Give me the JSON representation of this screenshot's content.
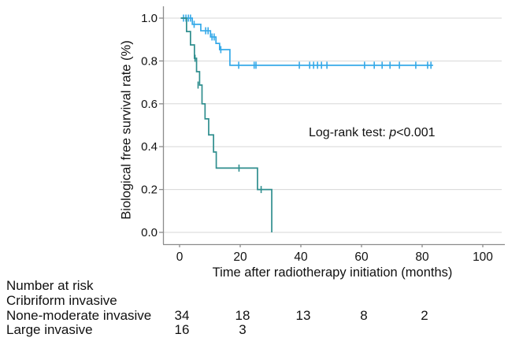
{
  "figure": {
    "background": "#ffffff"
  },
  "chart_data": {
    "type": "line",
    "subtype": "kaplan-meier-step",
    "title": "",
    "xlabel": "Time after radiotherapy initiation (months)",
    "ylabel": "Biological free survival rate (%)",
    "xlim": [
      -5.5,
      106
    ],
    "ylim": [
      0.0,
      1.0
    ],
    "xticks": [
      0,
      20,
      40,
      60,
      80,
      100
    ],
    "yticks": [
      0.0,
      0.2,
      0.4,
      0.6,
      0.8,
      1.0
    ],
    "xtick_labels": [
      "0",
      "20",
      "40",
      "60",
      "80",
      "100"
    ],
    "ytick_labels": [
      "0.0",
      "0.2",
      "0.4",
      "0.6",
      "0.8",
      "1.0"
    ],
    "grid": "horizontal",
    "grid_color": "#d7d7d7",
    "axis_color": "#8c8c8c",
    "annotation": {
      "prefix": "Log-rank test: ",
      "italic": "p",
      "suffix": "<0.001"
    },
    "series": [
      {
        "name": "None-moderate invasive",
        "color": "#35A9E8",
        "start_month": 0.4,
        "end_month": 83.6,
        "steps": [
          [
            4.2,
            0.971
          ],
          [
            7.0,
            0.941
          ],
          [
            10.2,
            0.912
          ],
          [
            12.0,
            0.882
          ],
          [
            13.2,
            0.853
          ],
          [
            16.6,
            0.78
          ]
        ],
        "censors": [
          [
            1.3,
            1.0
          ],
          [
            2.1,
            1.0
          ],
          [
            2.9,
            1.0
          ],
          [
            3.6,
            1.0
          ],
          [
            4.8,
            0.971
          ],
          [
            8.6,
            0.941
          ],
          [
            9.4,
            0.941
          ],
          [
            10.7,
            0.912
          ],
          [
            11.4,
            0.912
          ],
          [
            13.6,
            0.853
          ],
          [
            19.5,
            0.78
          ],
          [
            24.6,
            0.78
          ],
          [
            25.2,
            0.78
          ],
          [
            39.5,
            0.78
          ],
          [
            42.9,
            0.78
          ],
          [
            44.2,
            0.78
          ],
          [
            45.5,
            0.78
          ],
          [
            46.8,
            0.78
          ],
          [
            48.6,
            0.78
          ],
          [
            61.0,
            0.78
          ],
          [
            64.2,
            0.78
          ],
          [
            66.8,
            0.78
          ],
          [
            69.4,
            0.78
          ],
          [
            72.5,
            0.78
          ],
          [
            77.9,
            0.78
          ],
          [
            81.8,
            0.78
          ],
          [
            82.9,
            0.78
          ]
        ]
      },
      {
        "name": "Large invasive",
        "color": "#2F8E8E",
        "start_month": 0.4,
        "end_month": 30.4,
        "steps": [
          [
            2.3,
            0.9375
          ],
          [
            3.6,
            0.875
          ],
          [
            4.9,
            0.8125
          ],
          [
            5.6,
            0.75
          ],
          [
            6.6,
            0.6875
          ],
          [
            7.4,
            0.6
          ],
          [
            8.4,
            0.53
          ],
          [
            9.6,
            0.455
          ],
          [
            11.2,
            0.375
          ],
          [
            12.1,
            0.3
          ],
          [
            25.7,
            0.2
          ],
          [
            30.4,
            0.0
          ]
        ],
        "censors": [
          [
            5.1,
            0.8125
          ],
          [
            6.1,
            0.6875
          ],
          [
            19.6,
            0.3
          ],
          [
            26.9,
            0.2
          ]
        ]
      }
    ]
  },
  "risk_table": {
    "header": "Number at risk",
    "group": "Cribriform invasive",
    "rows": [
      {
        "label": "None-moderate invasive",
        "months": [
          0,
          20,
          40,
          60,
          80
        ],
        "counts": [
          "34",
          "18",
          "13",
          "8",
          "2"
        ]
      },
      {
        "label": "Large invasive",
        "months": [
          0,
          20
        ],
        "counts": [
          "16",
          "3"
        ]
      }
    ]
  }
}
